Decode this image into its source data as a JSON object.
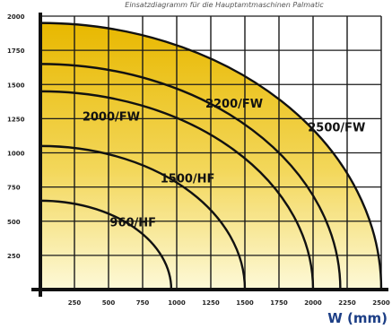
{
  "chart_data": {
    "type": "area",
    "subtitle": "Einsatzdiagramm für die Hauptamtmaschinen Palmatic",
    "xlabel": "W (mm)",
    "ylabel": "",
    "xlim": [
      0,
      2500
    ],
    "ylim": [
      0,
      2000
    ],
    "x_ticks": [
      "250",
      "500",
      "750",
      "1000",
      "1250",
      "1500",
      "1750",
      "2000",
      "2250",
      "2500"
    ],
    "y_ticks": [
      "250",
      "500",
      "750",
      "1000",
      "1250",
      "1500",
      "1750",
      "2000"
    ],
    "grid": true,
    "series": [
      {
        "name": "2500/FW",
        "x_max": 2500,
        "y_max": 1950
      },
      {
        "name": "2200/FW",
        "x_max": 2200,
        "y_max": 1650
      },
      {
        "name": "2000/FW",
        "x_max": 2000,
        "y_max": 1450
      },
      {
        "name": "1500/HF",
        "x_max": 1500,
        "y_max": 1050
      },
      {
        "name": "960/HF",
        "x_max": 960,
        "y_max": 650
      }
    ],
    "colors": {
      "fill_top": "#e8b800",
      "fill_bottom": "#fdf9d8",
      "curve": "#111111",
      "grid": "#1a1a1a",
      "xlabel": "#1d3f86"
    }
  }
}
